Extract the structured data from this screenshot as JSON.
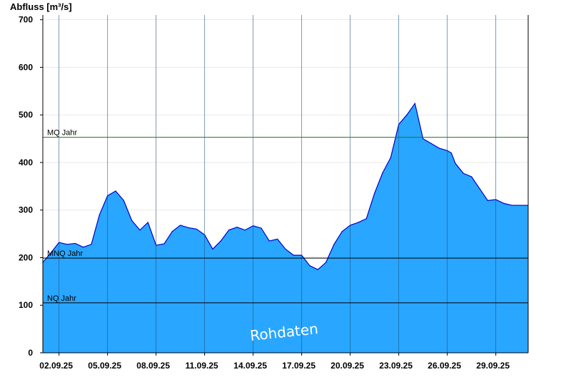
{
  "chart_data": {
    "type": "area",
    "ylabel": "Abfluss [m³/s]",
    "ylim": [
      0,
      710
    ],
    "yticks": [
      0,
      100,
      200,
      300,
      400,
      500,
      600,
      700
    ],
    "xlim": [
      "2025-09-01",
      "2025-10-01"
    ],
    "xticks": [
      "02.09.25",
      "05.09.25",
      "08.09.25",
      "11.09.25",
      "14.09.25",
      "17.09.25",
      "20.09.25",
      "23.09.25",
      "26.09.25",
      "29.09.25"
    ],
    "xtick_dates": [
      "2025-09-02",
      "2025-09-05",
      "2025-09-08",
      "2025-09-11",
      "2025-09-14",
      "2025-09-17",
      "2025-09-20",
      "2025-09-23",
      "2025-09-26",
      "2025-09-29"
    ],
    "reference_lines": [
      {
        "label": "MQ Jahr",
        "value": 453,
        "color": "#1a7a1a"
      },
      {
        "label": "MNQ Jahr",
        "value": 199,
        "color": "#000000"
      },
      {
        "label": "NQ Jahr",
        "value": 105,
        "color": "#000000"
      }
    ],
    "watermark": "Rohdaten",
    "fill_color": "#29a6ff",
    "line_color": "#0000cc",
    "x": [
      "2025-09-01T00:00",
      "2025-09-01T12:00",
      "2025-09-02T00:00",
      "2025-09-02T12:00",
      "2025-09-03T00:00",
      "2025-09-03T12:00",
      "2025-09-04T00:00",
      "2025-09-04T12:00",
      "2025-09-05T00:00",
      "2025-09-05T12:00",
      "2025-09-06T00:00",
      "2025-09-06T12:00",
      "2025-09-07T00:00",
      "2025-09-07T12:00",
      "2025-09-08T00:00",
      "2025-09-08T12:00",
      "2025-09-09T00:00",
      "2025-09-09T12:00",
      "2025-09-10T00:00",
      "2025-09-10T12:00",
      "2025-09-11T00:00",
      "2025-09-11T12:00",
      "2025-09-12T00:00",
      "2025-09-12T12:00",
      "2025-09-13T00:00",
      "2025-09-13T12:00",
      "2025-09-14T00:00",
      "2025-09-14T12:00",
      "2025-09-15T00:00",
      "2025-09-15T12:00",
      "2025-09-16T00:00",
      "2025-09-16T12:00",
      "2025-09-17T00:00",
      "2025-09-17T12:00",
      "2025-09-18T00:00",
      "2025-09-18T12:00",
      "2025-09-19T00:00",
      "2025-09-19T12:00",
      "2025-09-20T00:00",
      "2025-09-20T12:00",
      "2025-09-21T00:00",
      "2025-09-21T12:00",
      "2025-09-22T00:00",
      "2025-09-22T12:00",
      "2025-09-23T00:00",
      "2025-09-23T12:00",
      "2025-09-24T00:00",
      "2025-09-24T12:00",
      "2025-09-25T00:00",
      "2025-09-25T12:00",
      "2025-09-26T00:00",
      "2025-09-26T06:00",
      "2025-09-26T12:00",
      "2025-09-27T00:00",
      "2025-09-27T12:00",
      "2025-09-28T00:00",
      "2025-09-28T12:00",
      "2025-09-29T00:00",
      "2025-09-29T12:00",
      "2025-09-30T00:00",
      "2025-09-30T12:00",
      "2025-10-01T00:00"
    ],
    "values": [
      190,
      210,
      232,
      228,
      230,
      222,
      228,
      290,
      330,
      340,
      320,
      278,
      258,
      274,
      226,
      229,
      255,
      268,
      263,
      260,
      248,
      218,
      235,
      258,
      264,
      258,
      267,
      262,
      235,
      239,
      218,
      205,
      205,
      183,
      175,
      190,
      228,
      255,
      268,
      274,
      282,
      335,
      378,
      410,
      480,
      500,
      524,
      450,
      440,
      430,
      425,
      420,
      398,
      377,
      370,
      345,
      320,
      322,
      314,
      310,
      310,
      310
    ]
  }
}
